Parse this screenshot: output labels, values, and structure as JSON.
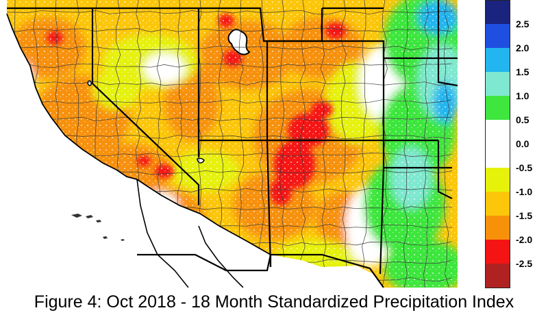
{
  "caption": "Figure 4: Oct 2018 - 18 Month Standardized Precipitation Index",
  "colors": {
    "ocean": "#ffffff",
    "state_border": "#000000",
    "county_border": "#3a3a3a",
    "lakes": "#ffffff"
  },
  "legend": {
    "bins": [
      {
        "color": "#1a237e"
      },
      {
        "color": "#1f4fe0"
      },
      {
        "color": "#22b5f0"
      },
      {
        "color": "#7fe8d0"
      },
      {
        "color": "#3ee63e"
      },
      {
        "color": "#ffffff"
      },
      {
        "color": "#ffffff"
      },
      {
        "color": "#e6f20a"
      },
      {
        "color": "#fcc60a"
      },
      {
        "color": "#f7910a"
      },
      {
        "color": "#f51414"
      },
      {
        "color": "#b02222"
      }
    ],
    "labels": [
      "2.5",
      "2.0",
      "1.5",
      "1.0",
      "0.5",
      "0.0",
      "-0.5",
      "-1.0",
      "-1.5",
      "-2.0",
      "-2.5"
    ]
  }
}
